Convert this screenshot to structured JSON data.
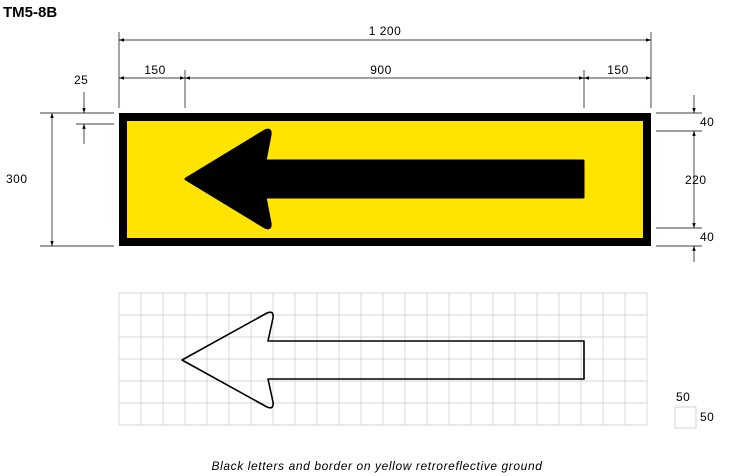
{
  "sign_code": "TM5-8B",
  "caption": "Black letters and border on yellow retroreflective ground",
  "colors": {
    "ground": "#ffe400",
    "legend": "#000000",
    "grid": "#c8c8c8"
  },
  "dimensions": {
    "overall_width": "1 200",
    "left_margin": "150",
    "arrow_length": "900",
    "right_margin": "150",
    "border": "25",
    "overall_height": "300",
    "top_gap": "40",
    "arrow_height": "220",
    "bottom_gap": "40"
  },
  "grid_key": {
    "width": "50",
    "height": "50"
  }
}
